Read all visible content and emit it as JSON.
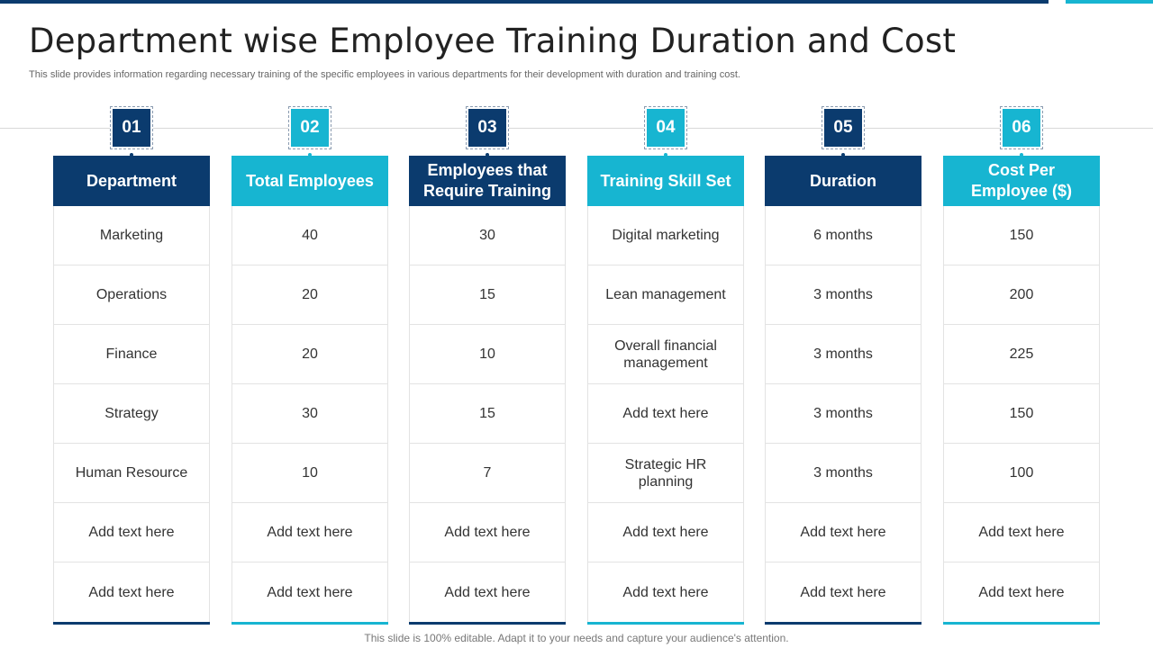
{
  "title": "Department wise Employee Training Duration and Cost",
  "subtitle": "This slide provides information regarding necessary training of the specific employees in various departments for their development with duration and training cost.",
  "footer": "This slide is 100% editable. Adapt it to your needs and capture your audience's attention.",
  "colors": {
    "dark": "#0b3b6e",
    "light": "#17b5d1"
  },
  "columns": [
    {
      "number": "01",
      "header": "Department",
      "cells": [
        "Marketing",
        "Operations",
        "Finance",
        "Strategy",
        "Human Resource",
        "Add text here",
        "Add text here"
      ]
    },
    {
      "number": "02",
      "header": "Total Employees",
      "cells": [
        "40",
        "20",
        "20",
        "30",
        "10",
        "Add text here",
        "Add text here"
      ]
    },
    {
      "number": "03",
      "header": "Employees that Require Training",
      "cells": [
        "30",
        "15",
        "10",
        "15",
        "7",
        "Add text here",
        "Add text here"
      ]
    },
    {
      "number": "04",
      "header": "Training Skill Set",
      "cells": [
        "Digital marketing",
        "Lean management",
        "Overall financial management",
        "Add text here",
        "Strategic HR planning",
        "Add text here",
        "Add text here"
      ]
    },
    {
      "number": "05",
      "header": "Duration",
      "cells": [
        "6 months",
        "3 months",
        "3 months",
        "3 months",
        "3 months",
        "Add text here",
        "Add text here"
      ]
    },
    {
      "number": "06",
      "header": "Cost Per Employee ($)",
      "cells": [
        "150",
        "200",
        "225",
        "150",
        "100",
        "Add text here",
        "Add text here"
      ]
    }
  ]
}
